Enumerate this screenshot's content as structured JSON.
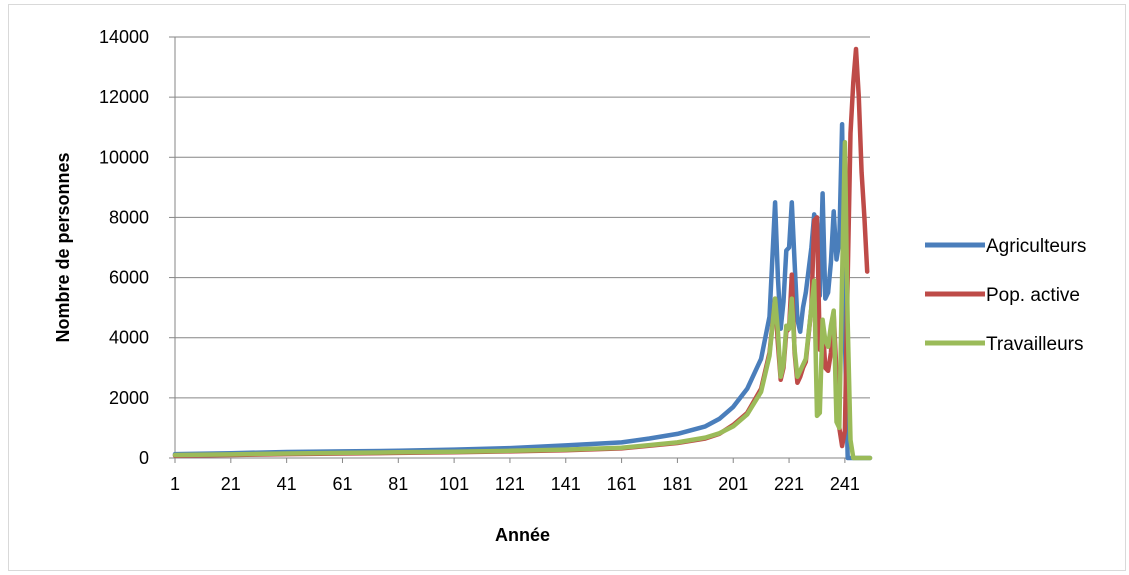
{
  "chart_data": {
    "type": "line",
    "title": "",
    "xlabel": "Année",
    "ylabel": "Nombre de personnes",
    "ylim": [
      0,
      14000
    ],
    "xlim": [
      1,
      250
    ],
    "y_ticks": [
      "0",
      "2000",
      "4000",
      "6000",
      "8000",
      "10000",
      "12000",
      "14000"
    ],
    "x_ticks": [
      "1",
      "21",
      "41",
      "61",
      "81",
      "101",
      "121",
      "141",
      "161",
      "181",
      "201",
      "221",
      "241"
    ],
    "grid": true,
    "legend_position": "right",
    "series": [
      {
        "name": "Agriculteurs",
        "color": "#4a7ebb",
        "points": [
          [
            1,
            130
          ],
          [
            21,
            160
          ],
          [
            41,
            200
          ],
          [
            61,
            220
          ],
          [
            81,
            240
          ],
          [
            101,
            280
          ],
          [
            121,
            330
          ],
          [
            141,
            420
          ],
          [
            161,
            520
          ],
          [
            171,
            650
          ],
          [
            181,
            800
          ],
          [
            191,
            1050
          ],
          [
            196,
            1300
          ],
          [
            201,
            1700
          ],
          [
            206,
            2300
          ],
          [
            211,
            3300
          ],
          [
            214,
            4700
          ],
          [
            216,
            8500
          ],
          [
            217,
            6000
          ],
          [
            218,
            4300
          ],
          [
            219,
            5200
          ],
          [
            220,
            6900
          ],
          [
            221,
            7000
          ],
          [
            222,
            8500
          ],
          [
            223,
            6500
          ],
          [
            224,
            4600
          ],
          [
            225,
            4200
          ],
          [
            226,
            5000
          ],
          [
            227,
            5500
          ],
          [
            229,
            7000
          ],
          [
            230,
            8100
          ],
          [
            231,
            7800
          ],
          [
            232,
            5400
          ],
          [
            233,
            8800
          ],
          [
            234,
            5300
          ],
          [
            235,
            5500
          ],
          [
            236,
            6500
          ],
          [
            237,
            8200
          ],
          [
            238,
            6600
          ],
          [
            239,
            7200
          ],
          [
            240,
            11100
          ],
          [
            241,
            4000
          ],
          [
            242,
            0
          ],
          [
            243,
            0
          ],
          [
            250,
            0
          ]
        ]
      },
      {
        "name": "Pop. active",
        "color": "#be4b48",
        "points": [
          [
            1,
            80
          ],
          [
            21,
            100
          ],
          [
            41,
            130
          ],
          [
            61,
            150
          ],
          [
            81,
            170
          ],
          [
            101,
            190
          ],
          [
            121,
            220
          ],
          [
            141,
            260
          ],
          [
            161,
            320
          ],
          [
            181,
            500
          ],
          [
            191,
            650
          ],
          [
            196,
            800
          ],
          [
            201,
            1100
          ],
          [
            206,
            1500
          ],
          [
            211,
            2300
          ],
          [
            214,
            3500
          ],
          [
            216,
            5300
          ],
          [
            217,
            3800
          ],
          [
            218,
            2600
          ],
          [
            219,
            3000
          ],
          [
            220,
            4200
          ],
          [
            221,
            4300
          ],
          [
            222,
            6100
          ],
          [
            223,
            3500
          ],
          [
            224,
            2500
          ],
          [
            225,
            2700
          ],
          [
            226,
            3000
          ],
          [
            227,
            3200
          ],
          [
            229,
            5000
          ],
          [
            230,
            7900
          ],
          [
            231,
            8000
          ],
          [
            232,
            3600
          ],
          [
            233,
            4500
          ],
          [
            234,
            3000
          ],
          [
            235,
            2900
          ],
          [
            236,
            3500
          ],
          [
            237,
            4800
          ],
          [
            238,
            2800
          ],
          [
            239,
            1000
          ],
          [
            240,
            400
          ],
          [
            241,
            900
          ],
          [
            242,
            6000
          ],
          [
            243,
            10800
          ],
          [
            244,
            12500
          ],
          [
            245,
            13600
          ],
          [
            246,
            12000
          ],
          [
            247,
            9500
          ],
          [
            248,
            8000
          ],
          [
            249,
            6200
          ]
        ]
      },
      {
        "name": "Travailleurs",
        "color": "#9bbb59",
        "points": [
          [
            1,
            100
          ],
          [
            21,
            120
          ],
          [
            41,
            150
          ],
          [
            61,
            170
          ],
          [
            81,
            190
          ],
          [
            101,
            210
          ],
          [
            121,
            240
          ],
          [
            141,
            280
          ],
          [
            161,
            340
          ],
          [
            181,
            520
          ],
          [
            191,
            680
          ],
          [
            196,
            820
          ],
          [
            201,
            1050
          ],
          [
            206,
            1450
          ],
          [
            211,
            2200
          ],
          [
            214,
            3400
          ],
          [
            216,
            5300
          ],
          [
            217,
            4200
          ],
          [
            218,
            2700
          ],
          [
            219,
            3100
          ],
          [
            220,
            4400
          ],
          [
            221,
            4300
          ],
          [
            222,
            5300
          ],
          [
            223,
            3600
          ],
          [
            224,
            2700
          ],
          [
            225,
            2900
          ],
          [
            226,
            3100
          ],
          [
            227,
            3300
          ],
          [
            229,
            5000
          ],
          [
            230,
            5900
          ],
          [
            231,
            1400
          ],
          [
            232,
            1500
          ],
          [
            233,
            4600
          ],
          [
            234,
            3900
          ],
          [
            235,
            3700
          ],
          [
            236,
            4400
          ],
          [
            237,
            4900
          ],
          [
            238,
            1200
          ],
          [
            239,
            1000
          ],
          [
            240,
            6000
          ],
          [
            241,
            10500
          ],
          [
            242,
            4500
          ],
          [
            243,
            600
          ],
          [
            244,
            0
          ],
          [
            250,
            0
          ]
        ]
      }
    ]
  }
}
